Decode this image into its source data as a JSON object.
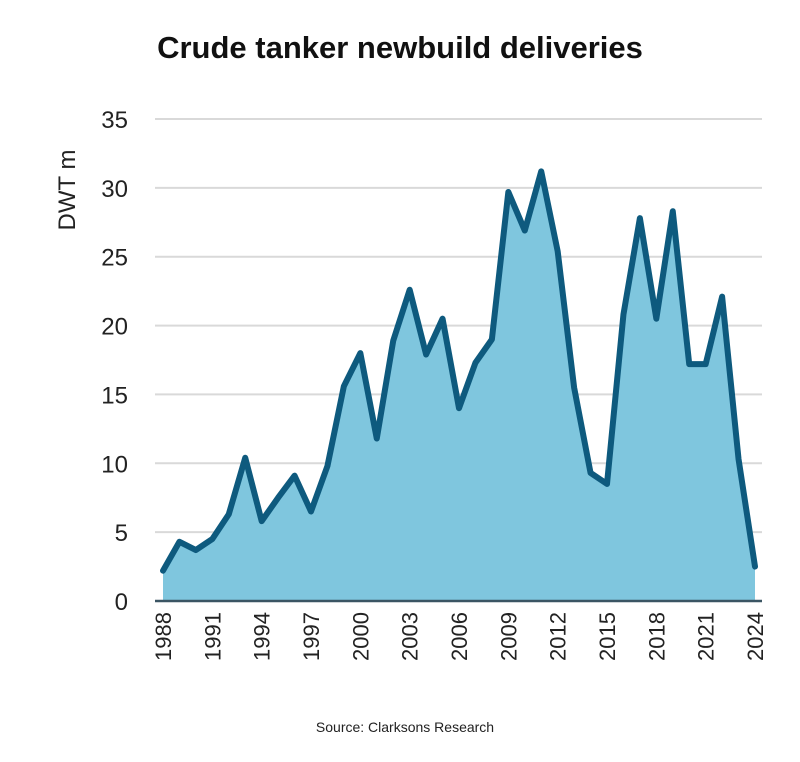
{
  "chart_data": {
    "type": "area",
    "title": "Crude tanker newbuild deliveries",
    "xlabel": "",
    "ylabel": "DWT m",
    "source": "Source: Clarksons Research",
    "ylim": [
      0,
      35
    ],
    "yticks": [
      0,
      5,
      10,
      15,
      20,
      25,
      30,
      35
    ],
    "xticks": [
      1988,
      1991,
      1994,
      1997,
      2000,
      2003,
      2006,
      2009,
      2012,
      2015,
      2018,
      2021,
      2024
    ],
    "grid": true,
    "colors": {
      "line": "#0e5a7e",
      "fill": "#7fc6de",
      "grid": "#d9d9d9"
    },
    "x": [
      1988,
      1989,
      1990,
      1991,
      1992,
      1993,
      1994,
      1995,
      1996,
      1997,
      1998,
      1999,
      2000,
      2001,
      2002,
      2003,
      2004,
      2005,
      2006,
      2007,
      2008,
      2009,
      2010,
      2011,
      2012,
      2013,
      2014,
      2015,
      2016,
      2017,
      2018,
      2019,
      2020,
      2021,
      2022,
      2023,
      2024
    ],
    "values": [
      2.2,
      4.3,
      3.7,
      4.5,
      6.3,
      10.4,
      5.8,
      7.5,
      9.1,
      6.5,
      9.8,
      15.6,
      18.0,
      11.8,
      18.9,
      22.6,
      17.9,
      20.5,
      14.0,
      17.3,
      19.0,
      29.7,
      26.9,
      31.2,
      25.4,
      15.5,
      9.3,
      8.5,
      20.8,
      27.8,
      20.5,
      28.3,
      17.2,
      17.2,
      22.1,
      10.3,
      2.5
    ]
  }
}
